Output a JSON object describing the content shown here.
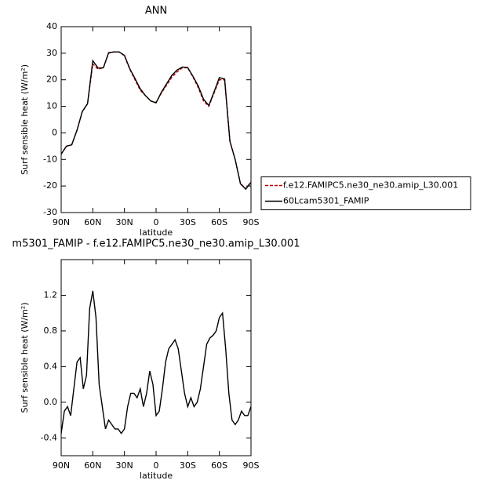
{
  "chart_data": [
    {
      "type": "line",
      "title": "ANN",
      "xlabel": "latitude",
      "ylabel": "Surf sensible heat (W/m²)",
      "x": [
        90,
        85,
        80,
        75,
        70,
        65,
        60,
        55,
        50,
        45,
        40,
        35,
        30,
        25,
        20,
        15,
        10,
        5,
        0,
        -5,
        -10,
        -15,
        -20,
        -25,
        -30,
        -35,
        -40,
        -45,
        -50,
        -55,
        -60,
        -65,
        -70,
        -75,
        -80,
        -85,
        -90
      ],
      "series": [
        {
          "name": "f.e12.FAMIPC5.ne30_ne30.amip_L30.001",
          "color": "#c00000",
          "linestyle": "dashed",
          "values": [
            -8,
            -5,
            -4.5,
            1,
            8,
            11,
            26,
            24,
            24.5,
            30,
            30.5,
            30.5,
            29,
            24,
            20,
            16,
            14,
            12,
            11.5,
            15,
            18,
            21,
            23,
            24.5,
            24.5,
            21,
            17,
            12,
            10,
            15,
            20,
            20,
            -3,
            -10,
            -19,
            -21,
            -18.5
          ]
        },
        {
          "name": "60Lcam5301_FAMIP",
          "color": "#000000",
          "linestyle": "solid",
          "values": [
            -8,
            -5,
            -4.5,
            1,
            8,
            11,
            27.2,
            24.4,
            24.5,
            30.2,
            30.5,
            30.5,
            29.2,
            24.2,
            20.5,
            16.6,
            14,
            12,
            11.3,
            15.3,
            18.5,
            21.7,
            23.7,
            24.8,
            24.6,
            21.3,
            17.6,
            12.7,
            10.3,
            15.5,
            20.8,
            20.3,
            -3.2,
            -10,
            -19.2,
            -21.2,
            -18.6
          ]
        }
      ],
      "xlim": [
        90,
        -90
      ],
      "xticks": [
        {
          "value": 90,
          "label": "90N"
        },
        {
          "value": 60,
          "label": "60N"
        },
        {
          "value": 30,
          "label": "30N"
        },
        0,
        {
          "value": -30,
          "label": "30S"
        },
        {
          "value": -60,
          "label": "60S"
        },
        {
          "value": -90,
          "label": "90S"
        }
      ],
      "ylim": [
        -30,
        40
      ],
      "yticks": [
        -30,
        -20,
        -10,
        0,
        10,
        20,
        30,
        40
      ],
      "legend": "right"
    },
    {
      "type": "line",
      "title": "m5301_FAMIP - f.e12.FAMIPC5.ne30_ne30.amip_L30.001",
      "xlabel": "latitude",
      "ylabel": "Surf sensible heat (W/m²)",
      "x": [
        90,
        87,
        84,
        81,
        78,
        75,
        72,
        69,
        66,
        63,
        60,
        57,
        54,
        51,
        48,
        45,
        42,
        39,
        36,
        33,
        30,
        27,
        24,
        21,
        18,
        15,
        12,
        9,
        6,
        3,
        0,
        -3,
        -6,
        -9,
        -12,
        -15,
        -18,
        -21,
        -24,
        -27,
        -30,
        -33,
        -36,
        -39,
        -42,
        -45,
        -48,
        -51,
        -54,
        -57,
        -60,
        -63,
        -66,
        -69,
        -72,
        -75,
        -78,
        -81,
        -84,
        -87,
        -90
      ],
      "series": [
        {
          "color": "#000000",
          "linestyle": "solid",
          "values": [
            -0.35,
            -0.1,
            -0.05,
            -0.15,
            0.15,
            0.45,
            0.5,
            0.15,
            0.3,
            1.05,
            1.25,
            0.95,
            0.2,
            -0.05,
            -0.3,
            -0.2,
            -0.25,
            -0.3,
            -0.3,
            -0.35,
            -0.3,
            -0.05,
            0.1,
            0.1,
            0.05,
            0.15,
            -0.05,
            0.1,
            0.35,
            0.2,
            -0.15,
            -0.1,
            0.15,
            0.45,
            0.6,
            0.65,
            0.7,
            0.6,
            0.35,
            0.1,
            -0.05,
            0.05,
            -0.05,
            0.0,
            0.15,
            0.4,
            0.65,
            0.72,
            0.75,
            0.8,
            0.95,
            1.0,
            0.6,
            0.1,
            -0.2,
            -0.25,
            -0.2,
            -0.1,
            -0.15,
            -0.15,
            -0.05
          ]
        }
      ],
      "xlim": [
        90,
        -90
      ],
      "xticks": [
        {
          "value": 90,
          "label": "90N"
        },
        {
          "value": 60,
          "label": "60N"
        },
        {
          "value": 30,
          "label": "30N"
        },
        0,
        {
          "value": -30,
          "label": "30S"
        },
        {
          "value": -60,
          "label": "60S"
        },
        {
          "value": -90,
          "label": "90S"
        }
      ],
      "ylim": [
        -0.6,
        1.6
      ],
      "yticks": [
        -0.4,
        {
          "value": 0,
          "label": "0.0"
        },
        0.4,
        0.8,
        1.2
      ]
    }
  ]
}
